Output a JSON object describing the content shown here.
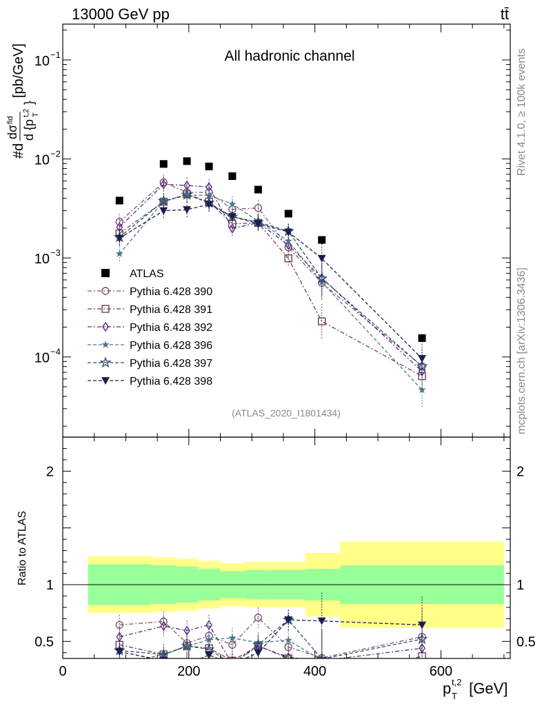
{
  "header": {
    "left": "13000 GeV pp",
    "right": "tt̄"
  },
  "side_labels": {
    "rivet": "Rivet 4.1.0, ≥ 100k events",
    "mcplots": "mcplots.cern.ch [arXiv:1306.3436]"
  },
  "chart_data": {
    "type": "line",
    "title": "All hadronic channel",
    "analysis": "(ATLAS_2020_I1801434)",
    "xlabel": "p_T^{t,2} [GeV]",
    "xlabel_main": "p",
    "xlabel_sub": "T",
    "xlabel_sup": "t,2",
    "xlabel_unit": " [GeV]",
    "ylabel": "#d dσ^{fid} / d {p_T^{t,2}} [pb/GeV]",
    "ratio_ylabel": "Ratio to ATLAS",
    "xlim": [
      0,
      710
    ],
    "ylim": [
      1.55e-05,
      0.23
    ],
    "yscale": "log",
    "ratio_ylim": [
      0.35,
      2.3
    ],
    "x_ticks": [
      0,
      200,
      400,
      600
    ],
    "y_ticks": [
      {
        "value": 0.1,
        "mant": "10",
        "exp": "−1"
      },
      {
        "value": 0.01,
        "mant": "10",
        "exp": "−2"
      },
      {
        "value": 0.001,
        "mant": "10",
        "exp": "−3"
      },
      {
        "value": 0.0001,
        "mant": "10",
        "exp": "−4"
      }
    ],
    "ratio_ticks": [
      0.5,
      1,
      2
    ],
    "bins": [
      {
        "lo": 40,
        "hi": 140,
        "x": 90
      },
      {
        "lo": 140,
        "hi": 180,
        "x": 160
      },
      {
        "lo": 180,
        "hi": 215,
        "x": 197
      },
      {
        "lo": 215,
        "hi": 250,
        "x": 232
      },
      {
        "lo": 250,
        "hi": 290,
        "x": 269
      },
      {
        "lo": 290,
        "hi": 330,
        "x": 310
      },
      {
        "lo": 330,
        "hi": 385,
        "x": 358
      },
      {
        "lo": 385,
        "hi": 440,
        "x": 411
      },
      {
        "lo": 440,
        "hi": 700,
        "x": 570
      }
    ],
    "data": {
      "name": "ATLAS",
      "values": [
        0.0038,
        0.0089,
        0.0095,
        0.0084,
        0.0067,
        0.0049,
        0.0028,
        0.00152,
        0.000155
      ],
      "band_inner": [
        0.18,
        0.17,
        0.16,
        0.14,
        0.12,
        0.13,
        0.13,
        0.14,
        0.17
      ],
      "band_outer": [
        0.25,
        0.24,
        0.23,
        0.21,
        0.19,
        0.2,
        0.2,
        0.28,
        0.38
      ]
    },
    "series": [
      {
        "name": "Pythia 6.428 390",
        "color": "#7a5372",
        "marker": "circle-open",
        "dash": "6,3,2,3",
        "values": [
          0.00232,
          0.0058,
          0.0046,
          0.0046,
          0.0031,
          0.0032,
          0.00128,
          0.00056,
          8.05e-05
        ],
        "ratio": [
          0.645,
          0.675,
          0.485,
          0.55,
          0.47,
          0.71,
          0.45,
          0.355,
          0.54
        ]
      },
      {
        "name": "Pythia 6.428 391",
        "color": "#6e3c4c",
        "marker": "square-open",
        "dash": "6,3,2,3",
        "values": [
          0.00177,
          0.0037,
          0.0044,
          0.0037,
          0.00221,
          0.00226,
          0.00099,
          0.000229,
          6.4e-05
        ],
        "ratio": [
          0.47,
          0.385,
          0.46,
          0.44,
          0.33,
          0.46,
          0.35,
          0.15,
          0.37
        ]
      },
      {
        "name": "Pythia 6.428 392",
        "color": "#5a2a82",
        "marker": "diamond-open",
        "dash": "6,3,2,3",
        "values": [
          0.00205,
          0.00555,
          0.0054,
          0.0052,
          0.00198,
          0.00227,
          0.00135,
          0.00063,
          7.15e-05
        ],
        "ratio": [
          0.54,
          0.635,
          0.595,
          0.645,
          0.3,
          0.46,
          0.36,
          0.33,
          0.44
        ]
      },
      {
        "name": "Pythia 6.428 396",
        "color": "#4a7b8a",
        "marker": "star-filled",
        "dash": "5,3",
        "values": [
          0.0011,
          0.00375,
          0.0043,
          0.0043,
          0.0035,
          0.00236,
          0.00148,
          0.00057,
          4.65e-05
        ],
        "ratio": [
          0.3,
          0.385,
          0.455,
          0.515,
          0.53,
          0.49,
          0.51,
          0.335,
          0.3
        ]
      },
      {
        "name": "Pythia 6.428 397",
        "color": "#2f4a6b",
        "marker": "star-open",
        "dash": "5,3",
        "values": [
          0.00162,
          0.00375,
          0.00435,
          0.0036,
          0.0026,
          0.0023,
          0.00186,
          0.00062,
          8.05e-05
        ],
        "ratio": [
          0.42,
          0.385,
          0.46,
          0.43,
          0.3,
          0.47,
          0.69,
          0.345,
          0.52
        ]
      },
      {
        "name": "Pythia 6.428 398",
        "color": "#1a1f4e",
        "marker": "triangle-down",
        "dash": "5,3",
        "values": [
          0.00158,
          0.003,
          0.00307,
          0.00348,
          0.00262,
          0.00222,
          0.00183,
          0.00099,
          9.65e-05
        ],
        "ratio": [
          0.41,
          0.33,
          0.3,
          0.38,
          0.3,
          0.4,
          0.69,
          0.68,
          0.645
        ]
      }
    ]
  }
}
